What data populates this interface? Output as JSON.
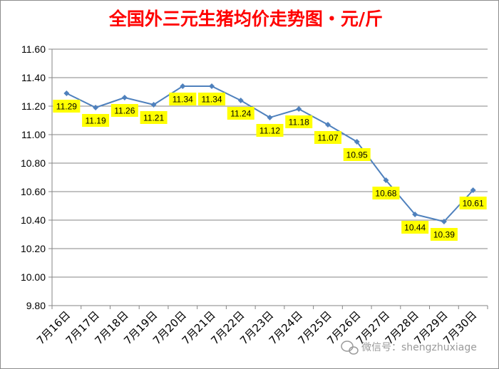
{
  "chart_data": {
    "type": "line",
    "title": "全国外三元生猪均价走势图・元/斤",
    "categories": [
      "7月16日",
      "7月17日",
      "7月18日",
      "7月19日",
      "7月20日",
      "7月21日",
      "7月22日",
      "7月23日",
      "7月24日",
      "7月25日",
      "7月26日",
      "7月27日",
      "7月28日",
      "7月29日",
      "7月30日"
    ],
    "values": [
      11.29,
      11.19,
      11.26,
      11.21,
      11.34,
      11.34,
      11.24,
      11.12,
      11.18,
      11.07,
      10.95,
      10.68,
      10.44,
      10.39,
      10.61
    ],
    "data_labels": [
      "11.29",
      "11.19",
      "11.26",
      "11.21",
      "11.34",
      "11.34",
      "11.24",
      "11.12",
      "11.18",
      "11.07",
      "10.95",
      "10.68",
      "10.44",
      "10.39",
      "10.61"
    ],
    "yticks": [
      "9.80",
      "10.00",
      "10.20",
      "10.40",
      "10.60",
      "10.80",
      "11.00",
      "11.20",
      "11.40",
      "11.60"
    ],
    "ylim": [
      9.8,
      11.6
    ],
    "xlabel": "",
    "ylabel": "",
    "grid": true,
    "legend": "none",
    "line_color": "#4f81bd",
    "label_background": "#ffff00"
  },
  "watermark": {
    "text": "微信号：shengzhuxiage",
    "icon": "wechat-icon"
  }
}
